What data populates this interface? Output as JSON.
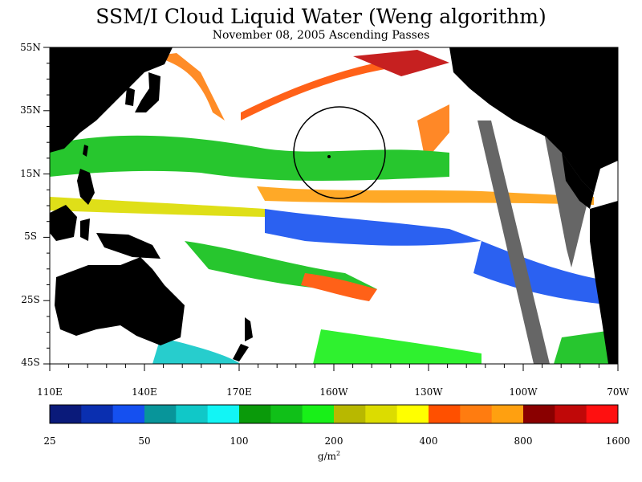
{
  "title": "SSM/I Cloud Liquid Water (Weng algorithm)",
  "subtitle": "November 08, 2005  Ascending Passes",
  "lat_labels": [
    "55N",
    "35N",
    "15N",
    "5S",
    "25S",
    "45S"
  ],
  "lon_labels": [
    "110E",
    "140E",
    "170E",
    "160W",
    "130W",
    "100W",
    "70W"
  ],
  "colorbar": {
    "colors": [
      "#0a1a7a",
      "#0a2fb0",
      "#1550f0",
      "#08959a",
      "#10c8c8",
      "#12f5f5",
      "#0a9a0a",
      "#10c018",
      "#18f018",
      "#b8b800",
      "#dcdc00",
      "#ffff00",
      "#ff5000",
      "#ff7c10",
      "#ffa010",
      "#8a0000",
      "#c00808",
      "#ff1010"
    ],
    "tick_labels": [
      "25",
      "50",
      "100",
      "200",
      "400",
      "800",
      "1600"
    ],
    "unit_base": "g/m",
    "unit_exp": "2"
  },
  "map_colors": {
    "land": "#000000",
    "no_data": "#666666",
    "clear": "#ffffff"
  }
}
